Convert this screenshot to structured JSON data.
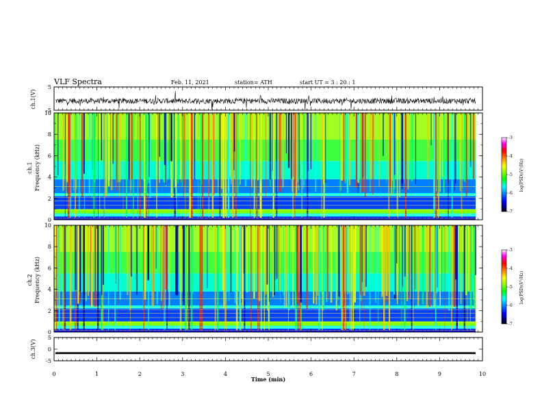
{
  "header": {
    "title": "VLF Spectra",
    "date": "Feb. 11, 2021",
    "station": "station= ATH",
    "start": "start  UT =   3  : 20 : 1"
  },
  "colors": {
    "colormap": [
      "#ffffff",
      "#ff00ff",
      "#ff0000",
      "#ff8000",
      "#ffff00",
      "#80ff00",
      "#00ff00",
      "#00ffff",
      "#0080ff",
      "#0000ff",
      "#000080",
      "#000000"
    ],
    "trace": "#000000"
  },
  "chart_data": [
    {
      "type": "line",
      "name": "ch1-waveform",
      "ylabel": "ch.1(V)",
      "ylim": [
        -5,
        5
      ],
      "yticks": [
        "5",
        "-5"
      ],
      "xlim": [
        0,
        10
      ],
      "note_values": "noisy waveform centred near -1 V, amplitude about +/-2 V"
    },
    {
      "type": "heatmap",
      "name": "ch1-spectrogram",
      "ylabel_top": "ch.1",
      "ylabel": "Frequency (kHz)",
      "ylim": [
        0,
        10
      ],
      "yticks": [
        "0",
        "2",
        "4",
        "6",
        "8",
        "10"
      ],
      "xlim": [
        0,
        10
      ],
      "colorbar": {
        "label": "log(PSD)(V²/Hz)",
        "range": [
          -7,
          -3
        ],
        "ticks": [
          "-3",
          "-4",
          "-5",
          "-6",
          "-7"
        ]
      }
    },
    {
      "type": "heatmap",
      "name": "ch2-spectrogram",
      "ylabel_top": "ch.2",
      "ylabel": "Frequency (kHz)",
      "ylim": [
        0,
        10
      ],
      "yticks": [
        "0",
        "2",
        "4",
        "6",
        "8",
        "10"
      ],
      "xlim": [
        0,
        10
      ],
      "colorbar": {
        "label": "log(PSD)(V²/Hz)",
        "range": [
          -7,
          -3
        ],
        "ticks": [
          "-3",
          "-4",
          "-5",
          "-6",
          "-7"
        ]
      }
    },
    {
      "type": "line",
      "name": "ch3-waveform",
      "ylabel": "ch.3(V)",
      "ylim": [
        -5,
        5
      ],
      "yticks": [
        "5",
        "0",
        "-5"
      ],
      "xlim": [
        0,
        10
      ],
      "note_values": "nearly constant signal at about -1.7 V"
    }
  ],
  "xaxis": {
    "label": "Time  (min)",
    "ticks": [
      "0",
      "1",
      "2",
      "3",
      "4",
      "5",
      "6",
      "7",
      "8",
      "9",
      "10"
    ],
    "range": [
      0,
      10
    ]
  }
}
